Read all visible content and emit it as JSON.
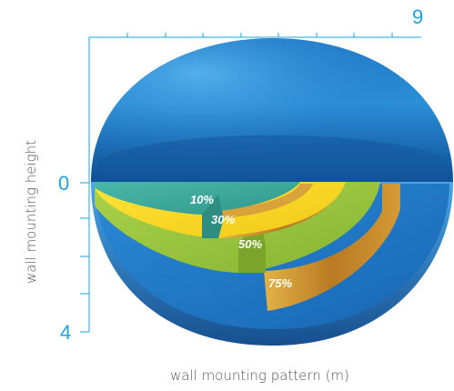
{
  "diagram": {
    "axes": {
      "x_max_label": "9",
      "y_origin_label": "0",
      "y_max_label": "4",
      "x_title": "wall mounting pattern (m)",
      "y_title": "wall mounting height"
    },
    "zones": [
      {
        "label": "10%"
      },
      {
        "label": "30%"
      },
      {
        "label": "50%"
      },
      {
        "label": "75%"
      }
    ],
    "colors": {
      "axis": "#1aa3e0",
      "outer_blue": "#1e6fb8",
      "teal": "#3aa79a",
      "yellow": "#f2d21a",
      "green": "#9cc93c",
      "gold_wall": "#c98a2b"
    }
  }
}
